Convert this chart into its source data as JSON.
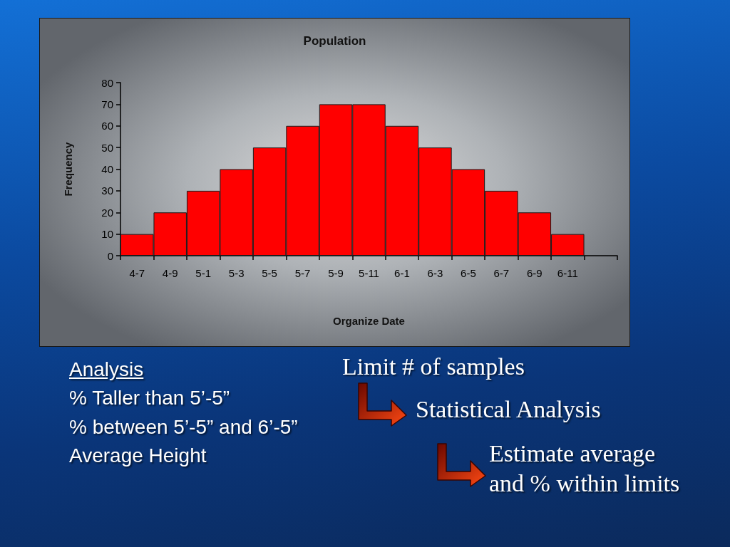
{
  "chart_data": {
    "type": "bar",
    "title": "Population",
    "xlabel": "Organize Date",
    "ylabel": "Frequency",
    "categories": [
      "4-7",
      "4-9",
      "5-1",
      "5-3",
      "5-5",
      "5-7",
      "5-9",
      "5-11",
      "6-1",
      "6-3",
      "6-5",
      "6-7",
      "6-9",
      "6-11",
      null
    ],
    "values": [
      10,
      20,
      30,
      40,
      50,
      60,
      70,
      70,
      60,
      50,
      40,
      30,
      20,
      10,
      null
    ],
    "color": "#ff0000",
    "ylim": [
      0,
      80
    ],
    "yticks": [
      0,
      10,
      20,
      30,
      40,
      50,
      60,
      70,
      80
    ],
    "grid": false,
    "annotations": [
      "Analysis",
      "% Taller than 5’-5”",
      "% between 5’-5” and 6’-5”",
      "Average Height",
      "Limit # of samples",
      "Statistical Analysis",
      "Estimate average and % within limits"
    ]
  }
}
